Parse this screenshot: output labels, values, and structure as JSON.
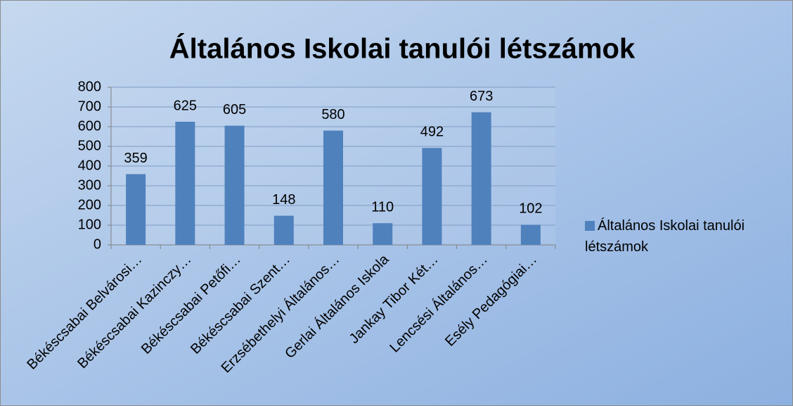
{
  "chart_data": {
    "type": "bar",
    "title": "Általános Iskolai tanulói létszámok",
    "categories": [
      "Békéscsabai Belvárosi…",
      "Békéscsabai Kazinczy…",
      "Békéscsabai Petőfi…",
      "Békéscsabai Szent…",
      "Erzsébethelyi Általános…",
      "Gerlai Általános Iskola",
      "Jankay Tibor Két…",
      "Lencsési Általános…",
      "Esély Pedagógiai…"
    ],
    "series": [
      {
        "name": "Általános Iskolai tanulói létszámok",
        "color": "#4f81bd",
        "values": [
          359,
          625,
          605,
          148,
          580,
          110,
          492,
          673,
          102
        ]
      }
    ],
    "ylim": [
      0,
      800
    ],
    "yticks": [
      0,
      100,
      200,
      300,
      400,
      500,
      600,
      700,
      800
    ],
    "grid": true,
    "legend": "right"
  }
}
